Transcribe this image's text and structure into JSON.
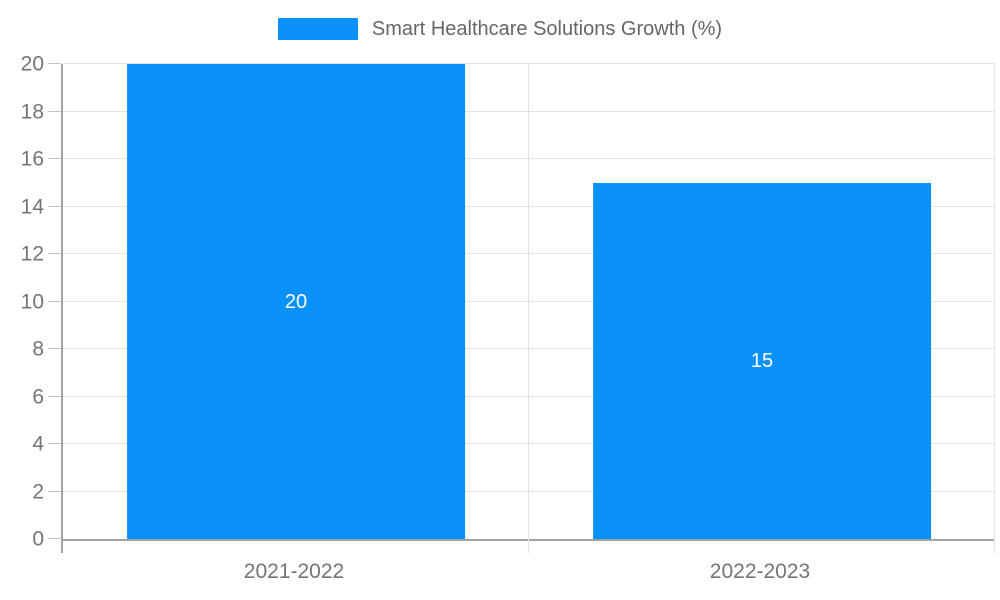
{
  "colors": {
    "bar": "#0991fa",
    "axis": "#a3a3a3",
    "grid": "#e3e3e3",
    "tick": "#c4c4c4",
    "tick_label": "#757575",
    "legend_text": "#666666",
    "bar_label": "#ffffff"
  },
  "legend": {
    "swatch_icon": "legend-color-swatch",
    "label": "Smart Healthcare Solutions Growth (%)"
  },
  "chart_data": {
    "type": "bar",
    "categories": [
      "2021-2022",
      "2022-2023"
    ],
    "series": [
      {
        "name": "Smart Healthcare Solutions Growth (%)",
        "values": [
          20,
          15
        ]
      }
    ],
    "bar_value_labels": [
      "20",
      "15"
    ],
    "title": "Smart Healthcare Solutions Growth (%)",
    "xlabel": "",
    "ylabel": "",
    "ylim": [
      0,
      20
    ],
    "ytick_step": 2,
    "yticks": [
      0,
      2,
      4,
      6,
      8,
      10,
      12,
      14,
      16,
      18,
      20
    ],
    "grid": true,
    "legend_position": "top-center",
    "bar_width_fraction": 0.725
  }
}
